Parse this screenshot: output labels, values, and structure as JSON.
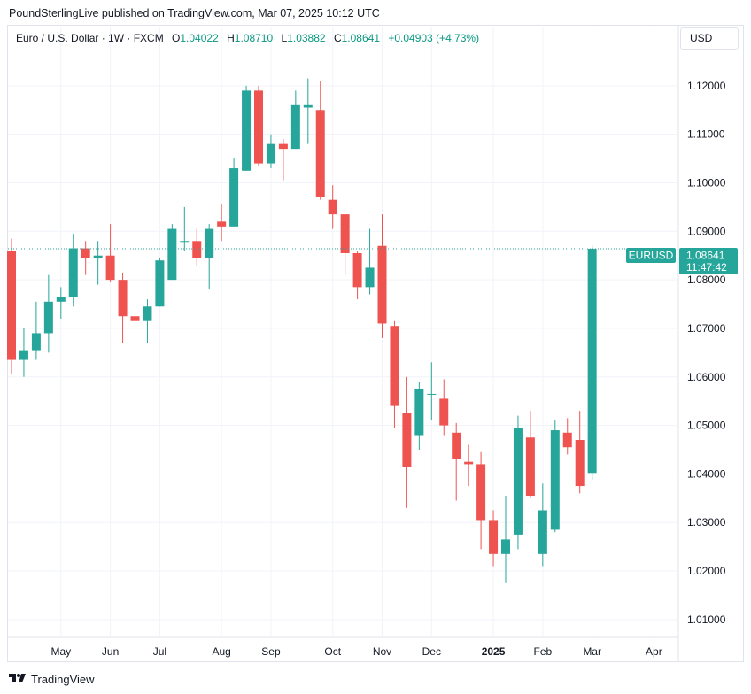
{
  "header": {
    "publisher": "PoundSterlingLive published on TradingView.com, Mar 07, 2025 10:12 UTC"
  },
  "legend": {
    "symbol": "Euro / U.S. Dollar · 1W · FXCM",
    "open_label": "O",
    "open": "1.04022",
    "high_label": "H",
    "high": "1.08710",
    "low_label": "L",
    "low": "1.03882",
    "close_label": "C",
    "close": "1.08641",
    "change": "+0.04903 (+4.73%)"
  },
  "currency_button": "USD",
  "price_tag": {
    "symbol": "EURUSD",
    "price": "1.08641",
    "countdown": "11:47:42"
  },
  "footer": {
    "brand": "TradingView"
  },
  "colors": {
    "up": "#26a69a",
    "down": "#ef5350",
    "grid": "#f0f3fa",
    "text": "#131722",
    "axis_border": "#e0e3eb"
  },
  "chart_data": {
    "type": "candlestick",
    "title": "Euro / U.S. Dollar · 1W · FXCM",
    "ylim": [
      1.0065,
      1.1322
    ],
    "y_ticks": [
      "1.12000",
      "1.11000",
      "1.10000",
      "1.09000",
      "1.08000",
      "1.07000",
      "1.06000",
      "1.05000",
      "1.04000",
      "1.03000",
      "1.02000",
      "1.01000"
    ],
    "x_ticks": [
      {
        "label": "May",
        "week": 4
      },
      {
        "label": "Jun",
        "week": 8
      },
      {
        "label": "Jul",
        "week": 12
      },
      {
        "label": "Aug",
        "week": 17
      },
      {
        "label": "Sep",
        "week": 21
      },
      {
        "label": "Oct",
        "week": 26
      },
      {
        "label": "Nov",
        "week": 30
      },
      {
        "label": "Dec",
        "week": 34
      },
      {
        "label": "2025",
        "week": 39,
        "bold": true
      },
      {
        "label": "Feb",
        "week": 43
      },
      {
        "label": "Mar",
        "week": 47
      },
      {
        "label": "Apr",
        "week": 52
      }
    ],
    "last_price": 1.08641,
    "candles": [
      {
        "o": 1.086,
        "h": 1.0885,
        "l": 1.0605,
        "c": 1.0635
      },
      {
        "o": 1.0635,
        "h": 1.07,
        "l": 1.06,
        "c": 1.0655
      },
      {
        "o": 1.0655,
        "h": 1.0755,
        "l": 1.0635,
        "c": 1.069
      },
      {
        "o": 1.069,
        "h": 1.081,
        "l": 1.065,
        "c": 1.0755
      },
      {
        "o": 1.0755,
        "h": 1.0785,
        "l": 1.072,
        "c": 1.0765
      },
      {
        "o": 1.0765,
        "h": 1.0895,
        "l": 1.0745,
        "c": 1.0865
      },
      {
        "o": 1.0865,
        "h": 1.088,
        "l": 1.081,
        "c": 1.0845
      },
      {
        "o": 1.0845,
        "h": 1.088,
        "l": 1.079,
        "c": 1.085
      },
      {
        "o": 1.085,
        "h": 1.0915,
        "l": 1.0795,
        "c": 1.08
      },
      {
        "o": 1.08,
        "h": 1.0815,
        "l": 1.067,
        "c": 1.0725
      },
      {
        "o": 1.0725,
        "h": 1.076,
        "l": 1.067,
        "c": 1.0715
      },
      {
        "o": 1.0715,
        "h": 1.076,
        "l": 1.067,
        "c": 1.0745
      },
      {
        "o": 1.0745,
        "h": 1.0845,
        "l": 1.0745,
        "c": 1.084
      },
      {
        "o": 1.08,
        "h": 1.0915,
        "l": 1.08,
        "c": 1.0905
      },
      {
        "o": 1.088,
        "h": 1.095,
        "l": 1.086,
        "c": 1.088
      },
      {
        "o": 1.088,
        "h": 1.0905,
        "l": 1.083,
        "c": 1.0845
      },
      {
        "o": 1.0845,
        "h": 1.0915,
        "l": 1.078,
        "c": 1.0905
      },
      {
        "o": 1.092,
        "h": 1.0955,
        "l": 1.088,
        "c": 1.091
      },
      {
        "o": 1.091,
        "h": 1.105,
        "l": 1.091,
        "c": 1.103
      },
      {
        "o": 1.1025,
        "h": 1.12,
        "l": 1.1025,
        "c": 1.119
      },
      {
        "o": 1.119,
        "h": 1.12,
        "l": 1.1035,
        "c": 1.104
      },
      {
        "o": 1.104,
        "h": 1.11,
        "l": 1.103,
        "c": 1.108
      },
      {
        "o": 1.108,
        "h": 1.109,
        "l": 1.1005,
        "c": 1.107
      },
      {
        "o": 1.107,
        "h": 1.119,
        "l": 1.107,
        "c": 1.116
      },
      {
        "o": 1.1155,
        "h": 1.1215,
        "l": 1.108,
        "c": 1.116
      },
      {
        "o": 1.115,
        "h": 1.121,
        "l": 1.0965,
        "c": 1.097
      },
      {
        "o": 1.0965,
        "h": 1.0995,
        "l": 1.0905,
        "c": 1.0935
      },
      {
        "o": 1.0935,
        "h": 1.0935,
        "l": 1.081,
        "c": 1.0855
      },
      {
        "o": 1.0855,
        "h": 1.086,
        "l": 1.076,
        "c": 1.0785
      },
      {
        "o": 1.0785,
        "h": 1.0905,
        "l": 1.077,
        "c": 1.0825
      },
      {
        "o": 1.087,
        "h": 1.0935,
        "l": 1.068,
        "c": 1.071
      },
      {
        "o": 1.0705,
        "h": 1.0715,
        "l": 1.0495,
        "c": 1.054
      },
      {
        "o": 1.0525,
        "h": 1.06,
        "l": 1.033,
        "c": 1.0415
      },
      {
        "o": 1.048,
        "h": 1.059,
        "l": 1.045,
        "c": 1.0575
      },
      {
        "o": 1.0565,
        "h": 1.063,
        "l": 1.051,
        "c": 1.0565
      },
      {
        "o": 1.0555,
        "h": 1.0595,
        "l": 1.048,
        "c": 1.05
      },
      {
        "o": 1.0485,
        "h": 1.0505,
        "l": 1.0345,
        "c": 1.043
      },
      {
        "o": 1.0425,
        "h": 1.046,
        "l": 1.0375,
        "c": 1.042
      },
      {
        "o": 1.042,
        "h": 1.0445,
        "l": 1.0245,
        "c": 1.0305
      },
      {
        "o": 1.0305,
        "h": 1.0325,
        "l": 1.021,
        "c": 1.0235
      },
      {
        "o": 1.0235,
        "h": 1.0355,
        "l": 1.0175,
        "c": 1.0265
      },
      {
        "o": 1.0275,
        "h": 1.052,
        "l": 1.0245,
        "c": 1.0495
      },
      {
        "o": 1.0475,
        "h": 1.053,
        "l": 1.035,
        "c": 1.0355
      },
      {
        "o": 1.0235,
        "h": 1.038,
        "l": 1.021,
        "c": 1.0325
      },
      {
        "o": 1.0285,
        "h": 1.051,
        "l": 1.028,
        "c": 1.049
      },
      {
        "o": 1.0485,
        "h": 1.0515,
        "l": 1.044,
        "c": 1.0455
      },
      {
        "o": 1.047,
        "h": 1.053,
        "l": 1.036,
        "c": 1.0375
      },
      {
        "o": 1.0402,
        "h": 1.0871,
        "l": 1.0388,
        "c": 1.0864
      }
    ]
  }
}
